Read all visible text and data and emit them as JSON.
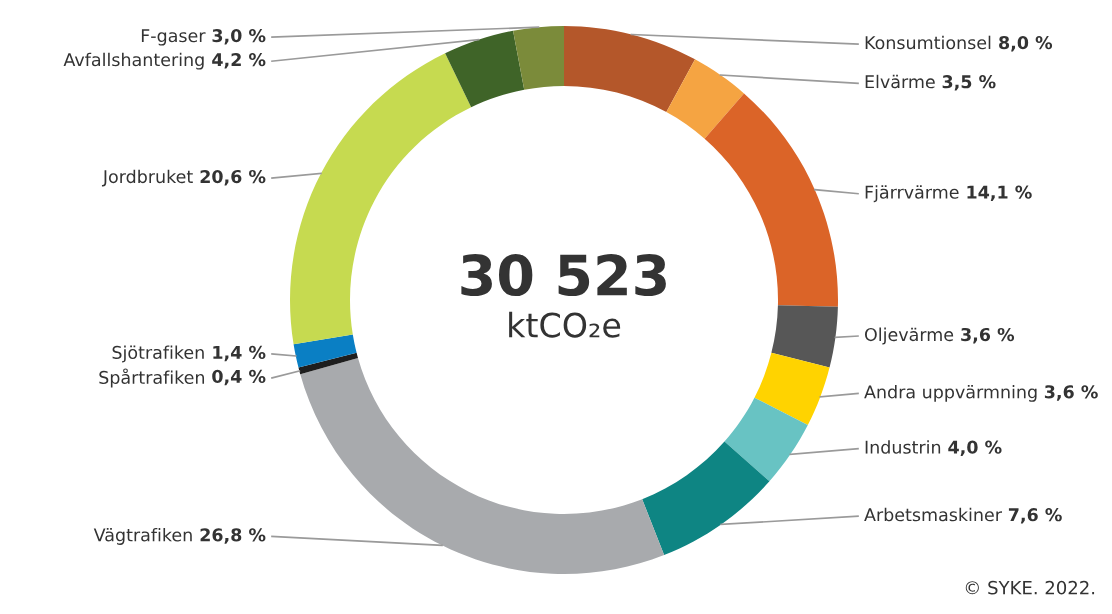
{
  "chart_data": {
    "type": "donut",
    "categories": [
      "Konsumtionsel",
      "Elvärme",
      "Fjärrvärme",
      "Oljevärme",
      "Andra uppvärmning",
      "Industrin",
      "Arbetsmaskiner",
      "Vägtrafiken",
      "Spårtrafiken",
      "Sjötrafiken",
      "Jordbruket",
      "Avfallshantering",
      "F-gaser"
    ],
    "values": [
      8.0,
      3.5,
      14.1,
      3.6,
      3.6,
      4.0,
      7.6,
      26.8,
      0.4,
      1.4,
      20.6,
      4.2,
      3.0
    ],
    "value_labels": [
      "8,0 %",
      "3,5 %",
      "14,1 %",
      "3,6 %",
      "3,6 %",
      "4,0 %",
      "7,6 %",
      "26,8 %",
      "0,4 %",
      "1,4 %",
      "20,6 %",
      "4,2 %",
      "3,0 %"
    ],
    "colors": [
      "#b4572a",
      "#f5a442",
      "#db6428",
      "#575757",
      "#ffd300",
      "#68c3c3",
      "#0e8583",
      "#a8aaad",
      "#1e1e1e",
      "#0a7fc4",
      "#c6da50",
      "#3f6428",
      "#7b8b3a"
    ],
    "annotations": [
      "30 523",
      "ktCO₂e",
      "© SYKE. 2022."
    ]
  }
}
